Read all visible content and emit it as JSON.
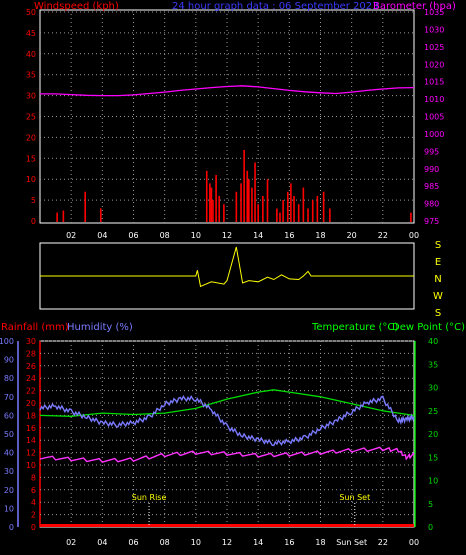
{
  "title": "24 hour graph data : 06 September 2023",
  "colors": {
    "bg": "#000000",
    "axis": "#ffffff",
    "grid": "#9a9a9a",
    "wind": "#ff0000",
    "baro": "#ff00ff",
    "dir": "#ffff00",
    "rain": "#ff0000",
    "hum": "#7a7aff",
    "temp": "#00dd00",
    "dew": "#ff33ff",
    "dewlabel": "#00ff00",
    "sun": "#ffff00"
  },
  "x_ticks": [
    "02",
    "04",
    "06",
    "08",
    "10",
    "12",
    "14",
    "16",
    "18",
    "20",
    "22",
    "00"
  ],
  "bottom_x_ticks": [
    "02",
    "04",
    "06",
    "08",
    "10",
    "12",
    "14",
    "16",
    "18",
    "Sun Set",
    "22",
    "00"
  ],
  "top": {
    "left_label": "Windspeed (kph)",
    "right_label": "Barometer (hpa)",
    "left_ticks": [
      "0",
      "5",
      "10",
      "15",
      "20",
      "25",
      "30",
      "35",
      "40",
      "45",
      "50"
    ],
    "right_ticks": [
      "975",
      "980",
      "985",
      "990",
      "995",
      "1000",
      "1005",
      "1010",
      "1015",
      "1020",
      "1025",
      "1030",
      "1035"
    ]
  },
  "mid": {
    "compass": [
      "S",
      "E",
      "N",
      "W",
      "S"
    ]
  },
  "bottom": {
    "rain_label": "Rainfall (mm)",
    "hum_label": "Humidity (%)",
    "temp_label": "Temperature (°C)",
    "dew_label": "Dew Point (°C)",
    "hum_ticks": [
      "0",
      "10",
      "20",
      "30",
      "40",
      "50",
      "60",
      "70",
      "80",
      "90",
      "100"
    ],
    "rain_ticks": [
      "0",
      "2",
      "4",
      "6",
      "8",
      "10",
      "12",
      "14",
      "16",
      "18",
      "20",
      "22",
      "24",
      "26",
      "28",
      "30"
    ],
    "temp_ticks": [
      "0",
      "5",
      "10",
      "15",
      "20",
      "25",
      "30",
      "35",
      "40"
    ],
    "sunrise_label": "Sun Rise",
    "sunset_label": "Sun Set"
  },
  "chart_data": [
    {
      "type": "line",
      "title": "24 hour graph data : 06 September 2023",
      "x_unit": "hour",
      "ylabel": "Windspeed (kph)",
      "y2label": "Barometer (hpa)",
      "ylim": [
        0,
        50
      ],
      "y2lim": [
        975,
        1035
      ],
      "series": [
        {
          "name": "Barometer (hpa)",
          "axis": "right",
          "x": [
            0,
            1,
            2,
            3,
            4,
            5,
            6,
            7,
            8,
            9,
            10,
            11,
            12,
            13,
            14,
            15,
            16,
            17,
            18,
            19,
            20,
            21,
            22,
            23,
            24
          ],
          "values": [
            1011.5,
            1011.5,
            1011.3,
            1011.1,
            1011.0,
            1011.0,
            1011.2,
            1011.6,
            1012.0,
            1012.5,
            1012.9,
            1013.3,
            1013.6,
            1013.8,
            1013.5,
            1013.0,
            1012.5,
            1012.1,
            1011.8,
            1011.6,
            1012.0,
            1012.5,
            1012.9,
            1013.2,
            1013.3
          ]
        },
        {
          "name": "Windspeed (kph)",
          "axis": "left",
          "kind": "bars",
          "x": [
            1.1,
            1.5,
            2.9,
            3.9,
            10.7,
            10.9,
            11.0,
            11.1,
            11.3,
            11.5,
            11.8,
            12.6,
            12.9,
            13.1,
            13.3,
            13.4,
            13.6,
            13.8,
            14.0,
            14.3,
            14.6,
            15.2,
            15.4,
            15.6,
            15.9,
            16.1,
            16.3,
            16.6,
            16.9,
            17.2,
            17.5,
            17.8,
            18.2,
            18.6,
            23.8
          ],
          "values": [
            2,
            2.5,
            7,
            3,
            12,
            9,
            8,
            5,
            11,
            6,
            4,
            7,
            9,
            17,
            12,
            10,
            8,
            14,
            4,
            6,
            10,
            3,
            2,
            5,
            7,
            9,
            6,
            4,
            8,
            3,
            5,
            6,
            7,
            3,
            2
          ]
        }
      ]
    },
    {
      "type": "line",
      "ylabel": "Wind direction",
      "yticks": [
        "S",
        "E",
        "N",
        "W",
        "S"
      ],
      "series": [
        {
          "name": "Wind direction",
          "x": [
            0,
            10.0,
            10.1,
            10.3,
            11.0,
            11.8,
            12.0,
            12.6,
            13.0,
            13.4,
            14.0,
            14.6,
            15.0,
            15.5,
            16.0,
            16.6,
            16.9,
            17.2,
            17.4,
            18.0,
            24
          ],
          "values": [
            0.5,
            0.5,
            0.4,
            0.68,
            0.6,
            0.64,
            0.58,
            0.0,
            0.62,
            0.58,
            0.6,
            0.52,
            0.56,
            0.48,
            0.55,
            0.56,
            0.5,
            0.42,
            0.5,
            0.5,
            0.5
          ]
        }
      ]
    },
    {
      "type": "line",
      "ylabel": "Humidity (%)",
      "y2label": "Temperature (°C)",
      "ylim": [
        0,
        100
      ],
      "y2lim": [
        0,
        40
      ],
      "rain_ylim": [
        0,
        30
      ],
      "series": [
        {
          "name": "Humidity (%)",
          "axis": "humidity",
          "x": [
            0,
            1,
            2,
            3,
            4,
            5,
            6,
            7,
            8,
            9,
            10,
            11,
            12,
            13,
            14,
            15,
            16,
            17,
            18,
            19,
            20,
            21,
            22,
            23,
            23.5,
            24
          ],
          "values": [
            64,
            65,
            62,
            59,
            56,
            55,
            56,
            59,
            66,
            69,
            69,
            63,
            54,
            49,
            47,
            45,
            46,
            48,
            53,
            57,
            62,
            67,
            69,
            57,
            58,
            59
          ]
        },
        {
          "name": "Temperature (°C)",
          "axis": "temperature",
          "x": [
            0,
            2,
            4,
            6,
            8,
            10,
            12,
            14,
            15,
            16,
            18,
            20,
            22,
            23,
            24
          ],
          "values": [
            24.0,
            23.8,
            24.5,
            24.2,
            24.5,
            25.5,
            27.5,
            29.0,
            29.5,
            29.0,
            28.0,
            26.5,
            25.0,
            24.5,
            24.0
          ]
        },
        {
          "name": "Dew Point (°C)",
          "axis": "temperature",
          "x": [
            0,
            2,
            4,
            6,
            8,
            10,
            12,
            14,
            16,
            18,
            20,
            22,
            23,
            23.5,
            24
          ],
          "values": [
            15.0,
            14.6,
            14.3,
            14.5,
            15.5,
            16.0,
            15.8,
            15.4,
            15.6,
            16.0,
            16.5,
            16.8,
            16.5,
            15.0,
            15.5
          ]
        },
        {
          "name": "Rainfall (mm)",
          "axis": "rain",
          "x": [
            0,
            24
          ],
          "values": [
            0,
            0
          ]
        }
      ],
      "annotations": [
        {
          "label": "Sun Rise",
          "x": 7.0
        },
        {
          "label": "Sun Set",
          "x": 20.2
        }
      ]
    }
  ]
}
